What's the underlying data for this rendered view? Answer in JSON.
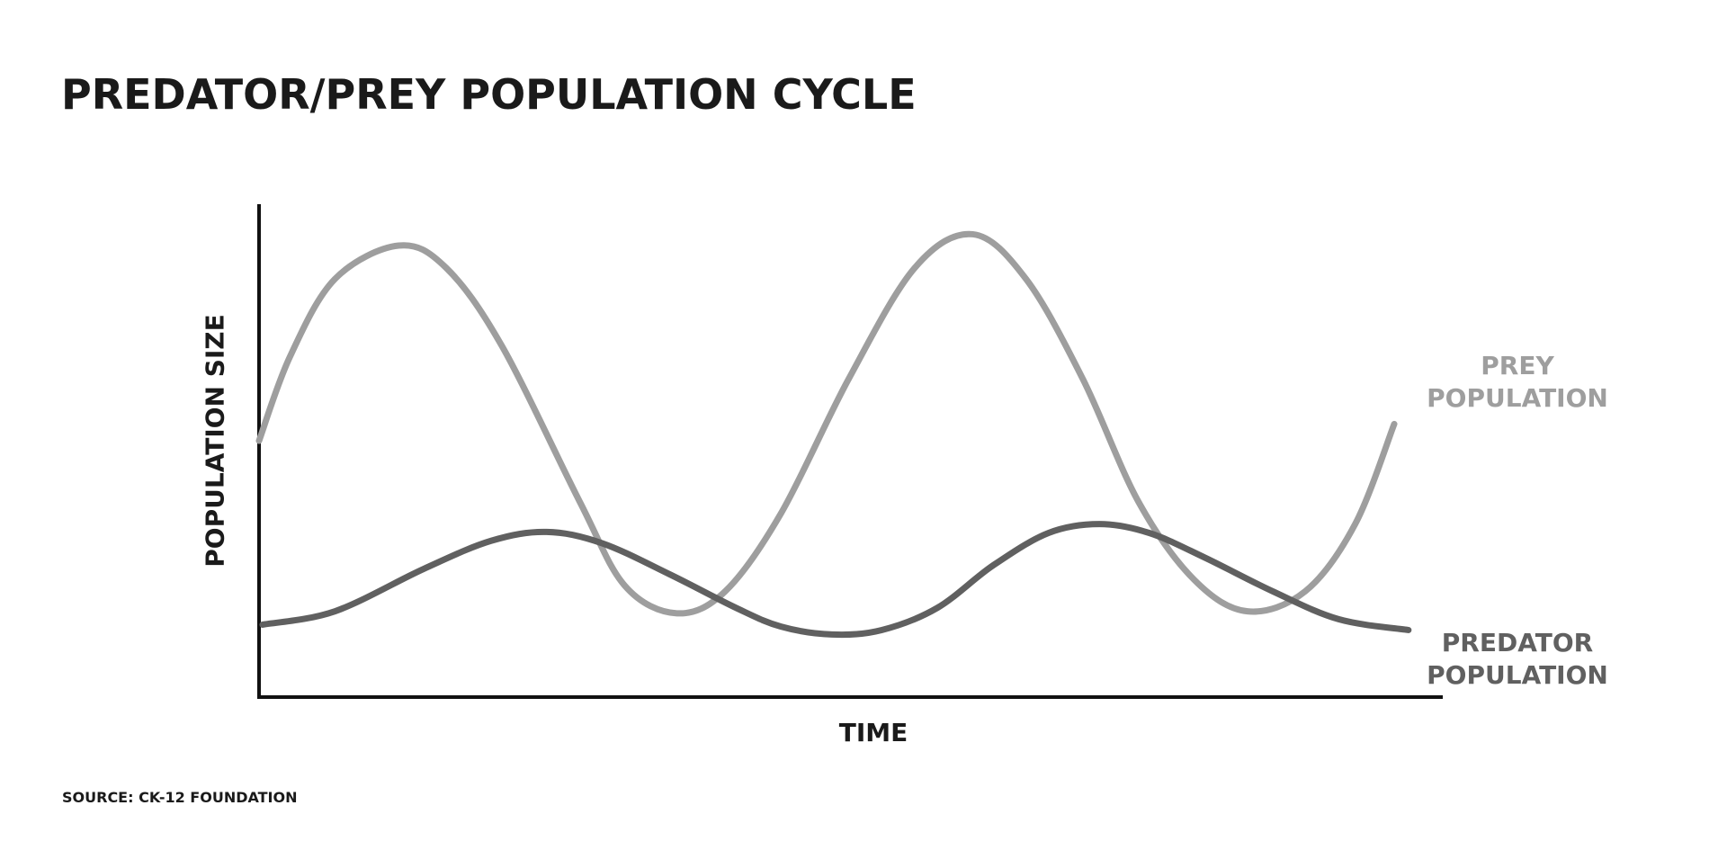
{
  "chart_data": {
    "type": "line",
    "title": "PREDATOR/PREY POPULATION CYCLE",
    "x_label": "TIME",
    "y_label": "POPULATION SIZE",
    "source": "SOURCE: CK-12 FOUNDATION",
    "xlim": [
      0,
      100
    ],
    "ylim": [
      0,
      100
    ],
    "series": [
      {
        "name": "PREY POPULATION",
        "color": "#9e9e9e",
        "x": [
          0,
          2.6,
          6.4,
          11.8,
          15.8,
          20.5,
          27.1,
          30.9,
          35.3,
          39.4,
          44.1,
          49.8,
          55.4,
          60.3,
          64.8,
          69.6,
          74.3,
          79.0,
          83.5,
          88.4,
          92.6,
          95.9
        ],
        "values": [
          52.0,
          69.0,
          84.8,
          91.6,
          87.1,
          71.3,
          39.6,
          22.6,
          17.0,
          21.5,
          37.3,
          64.5,
          87.1,
          93.9,
          84.8,
          64.5,
          39.6,
          23.8,
          17.4,
          21.5,
          35.1,
          55.4
        ]
      },
      {
        "name": "PREDATOR POPULATION",
        "color": "#606060",
        "x": [
          0.3,
          6.4,
          13.9,
          19.6,
          24.3,
          29.0,
          34.7,
          40.3,
          44.1,
          48.4,
          52.6,
          57.3,
          62.0,
          66.7,
          71.0,
          75.2,
          79.9,
          85.6,
          91.2,
          97.1
        ],
        "values": [
          14.7,
          17.4,
          26.0,
          31.7,
          33.5,
          31.2,
          24.9,
          18.1,
          14.3,
          12.7,
          13.6,
          18.1,
          26.7,
          33.3,
          35.1,
          33.3,
          28.3,
          21.5,
          15.8,
          13.6
        ]
      }
    ]
  }
}
